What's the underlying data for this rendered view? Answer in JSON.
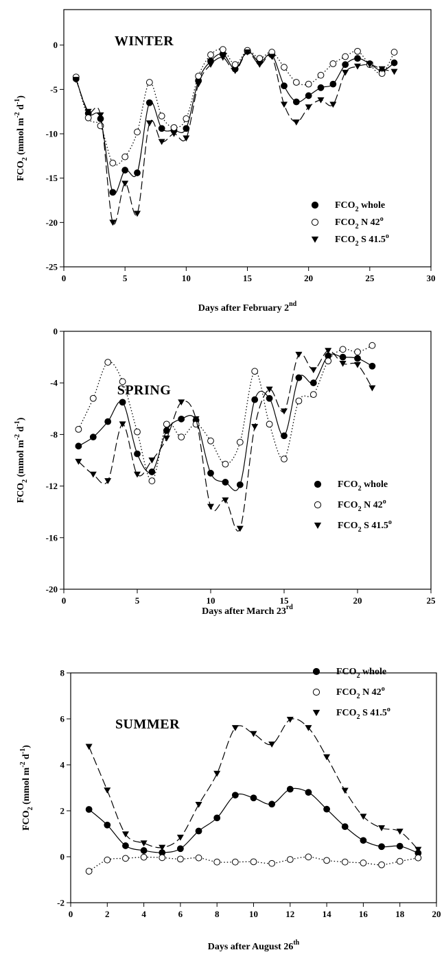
{
  "chart_data": [
    {
      "type": "line",
      "title": "WINTER",
      "xlabel": "Days after February 2",
      "xlabel_sup": "nd",
      "ylabel": "FCO2 (mmol m-2 d-1)",
      "xlim": [
        0,
        30
      ],
      "ylim": [
        -25,
        4
      ],
      "xticks": [
        0,
        5,
        10,
        15,
        20,
        25,
        30
      ],
      "yticks": [
        -25,
        -20,
        -15,
        -10,
        -5,
        0
      ],
      "legend_position": "bottom-right",
      "series": [
        {
          "name": "FCO2 whole",
          "marker": "filled-circle",
          "line": "solid",
          "x": [
            1,
            2,
            3,
            4,
            5,
            6,
            7,
            8,
            9,
            10,
            11,
            12,
            13,
            14,
            15,
            16,
            17,
            18,
            19,
            20,
            21,
            22,
            23,
            24,
            25,
            26,
            27
          ],
          "y": [
            -3.8,
            -7.7,
            -8.3,
            -16.6,
            -14.1,
            -14.4,
            -6.5,
            -9.4,
            -9.6,
            -9.4,
            -4.0,
            -1.8,
            -1.0,
            -2.7,
            -0.7,
            -1.9,
            -1.1,
            -4.6,
            -6.4,
            -5.7,
            -4.8,
            -4.4,
            -2.2,
            -1.5,
            -2.1,
            -2.9,
            -2.0
          ]
        },
        {
          "name": "FCO2 N 42º",
          "marker": "open-circle",
          "line": "dotted",
          "x": [
            1,
            2,
            3,
            4,
            5,
            6,
            7,
            8,
            9,
            10,
            11,
            12,
            13,
            14,
            15,
            16,
            17,
            18,
            19,
            20,
            21,
            22,
            23,
            24,
            25,
            26,
            27
          ],
          "y": [
            -3.6,
            -8.2,
            -9.1,
            -13.3,
            -12.6,
            -9.8,
            -4.2,
            -8.0,
            -9.3,
            -8.3,
            -3.5,
            -1.1,
            -0.5,
            -2.2,
            -0.6,
            -1.5,
            -0.8,
            -2.5,
            -4.2,
            -4.4,
            -3.4,
            -2.1,
            -1.3,
            -0.7,
            -2.2,
            -3.2,
            -0.8
          ]
        },
        {
          "name": "FCO2 S 41.5º",
          "marker": "filled-triangle-down",
          "line": "dashed",
          "x": [
            1,
            2,
            3,
            4,
            5,
            6,
            7,
            8,
            9,
            10,
            11,
            12,
            13,
            14,
            15,
            16,
            17,
            18,
            19,
            20,
            21,
            22,
            23,
            24,
            25,
            26,
            27
          ],
          "y": [
            -3.9,
            -7.5,
            -7.9,
            -20.0,
            -15.6,
            -19.0,
            -8.8,
            -10.9,
            -10.0,
            -10.5,
            -4.4,
            -2.2,
            -1.4,
            -2.9,
            -0.8,
            -2.2,
            -1.3,
            -6.7,
            -8.7,
            -7.0,
            -6.2,
            -6.7,
            -3.1,
            -2.4,
            -2.2,
            -2.7,
            -3.0
          ]
        }
      ]
    },
    {
      "type": "line",
      "title": "SPRING",
      "xlabel": "Days after March 23",
      "xlabel_sup": "rd",
      "ylabel": "FCO2 (mmol m-2 d-1)",
      "xlim": [
        0,
        25
      ],
      "ylim": [
        -20,
        0
      ],
      "xticks": [
        0,
        5,
        10,
        15,
        20,
        25
      ],
      "yticks": [
        -20,
        -16,
        -12,
        -8,
        -4,
        0
      ],
      "legend_position": "lower-right",
      "series": [
        {
          "name": "FCO2 whole",
          "marker": "filled-circle",
          "line": "solid",
          "x": [
            1,
            2,
            3,
            4,
            5,
            6,
            7,
            8,
            9,
            10,
            11,
            12,
            13,
            14,
            15,
            16,
            17,
            18,
            19,
            20,
            21
          ],
          "y": [
            -8.9,
            -8.2,
            -7.0,
            -5.5,
            -9.5,
            -10.9,
            -7.7,
            -6.8,
            -6.9,
            -11.0,
            -11.7,
            -11.9,
            -5.3,
            -5.2,
            -8.1,
            -3.6,
            -4.0,
            -1.9,
            -2.0,
            -2.1,
            -2.7
          ]
        },
        {
          "name": "FCO2 N 42º",
          "marker": "open-circle",
          "line": "dotted",
          "x": [
            1,
            2,
            3,
            4,
            5,
            6,
            7,
            8,
            9,
            10,
            11,
            12,
            13,
            14,
            15,
            16,
            17,
            18,
            19,
            20,
            21
          ],
          "y": [
            -7.6,
            -5.2,
            -2.4,
            -3.9,
            -7.8,
            -11.6,
            -7.2,
            -8.2,
            -7.2,
            -8.5,
            -10.3,
            -8.6,
            -3.1,
            -7.2,
            -9.9,
            -5.4,
            -4.9,
            -2.3,
            -1.4,
            -1.6,
            -1.1
          ]
        },
        {
          "name": "FCO2 S 41.5º",
          "marker": "filled-triangle-down",
          "line": "dashed",
          "x": [
            1,
            2,
            3,
            4,
            5,
            6,
            7,
            8,
            9,
            10,
            11,
            12,
            13,
            14,
            15,
            16,
            17,
            18,
            19,
            20,
            21
          ],
          "y": [
            -10.1,
            -11.1,
            -11.6,
            -7.2,
            -11.1,
            -10.0,
            -8.3,
            -5.5,
            -6.8,
            -13.6,
            -13.1,
            -15.3,
            -7.4,
            -4.5,
            -6.2,
            -1.8,
            -3.0,
            -1.5,
            -2.5,
            -2.6,
            -4.4
          ]
        }
      ]
    },
    {
      "type": "line",
      "title": "SUMMER",
      "xlabel": "Days after August 26",
      "xlabel_sup": "th",
      "ylabel": "FCO2 (mmol m-2 d-1)",
      "xlim": [
        0,
        20
      ],
      "ylim": [
        -2,
        8
      ],
      "xticks": [
        0,
        2,
        4,
        6,
        8,
        10,
        12,
        14,
        16,
        18,
        20
      ],
      "yticks": [
        -2,
        0,
        2,
        4,
        6,
        8
      ],
      "legend_position": "top-right",
      "series": [
        {
          "name": "FCO2 whole",
          "marker": "filled-circle",
          "line": "solid",
          "x": [
            1,
            2,
            3,
            4,
            5,
            6,
            7,
            8,
            9,
            10,
            11,
            12,
            13,
            14,
            15,
            16,
            17,
            18,
            19
          ],
          "y": [
            2.06,
            1.38,
            0.48,
            0.27,
            0.18,
            0.35,
            1.12,
            1.69,
            2.68,
            2.56,
            2.29,
            2.94,
            2.8,
            2.07,
            1.31,
            0.71,
            0.44,
            0.46,
            0.16
          ]
        },
        {
          "name": "FCO2 N 42º",
          "marker": "open-circle",
          "line": "dotted",
          "x": [
            1,
            2,
            3,
            4,
            5,
            6,
            7,
            8,
            9,
            10,
            11,
            12,
            13,
            14,
            15,
            16,
            17,
            18,
            19
          ],
          "y": [
            -0.63,
            -0.14,
            -0.07,
            -0.02,
            -0.04,
            -0.1,
            -0.05,
            -0.23,
            -0.23,
            -0.22,
            -0.29,
            -0.12,
            -0.01,
            -0.16,
            -0.23,
            -0.27,
            -0.35,
            -0.2,
            -0.05
          ]
        },
        {
          "name": "FCO2 S 41.5º",
          "marker": "filled-triangle-down",
          "line": "dashed",
          "x": [
            1,
            2,
            3,
            4,
            5,
            6,
            7,
            8,
            9,
            10,
            11,
            12,
            13,
            14,
            15,
            16,
            17,
            18,
            19
          ],
          "y": [
            4.79,
            2.89,
            0.98,
            0.59,
            0.4,
            0.84,
            2.27,
            3.62,
            5.61,
            5.35,
            4.89,
            5.97,
            5.61,
            4.34,
            2.88,
            1.75,
            1.25,
            1.1,
            0.31
          ]
        }
      ]
    }
  ]
}
